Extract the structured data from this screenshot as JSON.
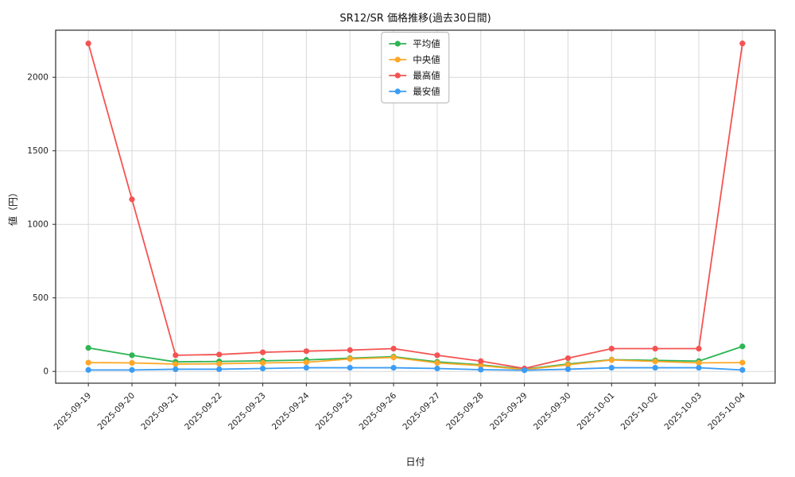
{
  "chart_data": {
    "type": "line",
    "title": "SR12/SR 価格推移(過去30日間)",
    "xlabel": "日付",
    "ylabel": "値（円）",
    "grid": true,
    "legend_position": "top-center",
    "ylim": [
      -80,
      2320
    ],
    "yticks": [
      0,
      500,
      1000,
      1500,
      2000
    ],
    "categories": [
      "2025-09-19",
      "2025-09-20",
      "2025-09-21",
      "2025-09-22",
      "2025-09-23",
      "2025-09-24",
      "2025-09-25",
      "2025-09-26",
      "2025-09-27",
      "2025-09-28",
      "2025-09-29",
      "2025-09-30",
      "2025-10-01",
      "2025-10-02",
      "2025-10-03",
      "2025-10-04"
    ],
    "series": [
      {
        "name": "平均値",
        "color": "#2eb554",
        "values": [
          160,
          110,
          65,
          68,
          72,
          78,
          90,
          100,
          65,
          45,
          15,
          50,
          80,
          75,
          70,
          170
        ]
      },
      {
        "name": "中央値",
        "color": "#ffa726",
        "values": [
          60,
          58,
          50,
          52,
          58,
          62,
          85,
          95,
          58,
          40,
          12,
          45,
          78,
          68,
          58,
          60
        ]
      },
      {
        "name": "最高値",
        "color": "#f45352",
        "values": [
          2230,
          1170,
          110,
          115,
          130,
          138,
          145,
          155,
          110,
          70,
          20,
          90,
          155,
          155,
          155,
          2230
        ]
      },
      {
        "name": "最安値",
        "color": "#3b9df5",
        "values": [
          10,
          10,
          15,
          15,
          20,
          25,
          25,
          25,
          20,
          12,
          8,
          15,
          25,
          25,
          25,
          10
        ]
      }
    ]
  }
}
